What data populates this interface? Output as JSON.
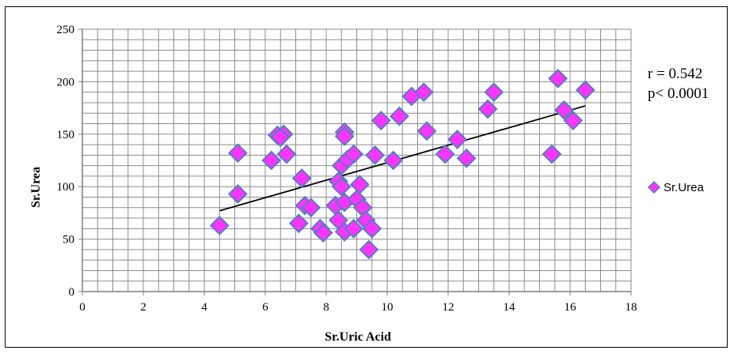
{
  "chart_data": {
    "type": "scatter",
    "xlabel": "Sr.Uric Acid",
    "ylabel": "Sr.Urea",
    "xlim": [
      0,
      18
    ],
    "ylim": [
      0,
      250
    ],
    "x_ticks": [
      "0",
      "2",
      "4",
      "6",
      "8",
      "10",
      "12",
      "14",
      "16",
      "18"
    ],
    "y_ticks": [
      "0",
      "50",
      "100",
      "150",
      "200",
      "250"
    ],
    "x_tick_values": [
      0,
      2,
      4,
      6,
      8,
      10,
      12,
      14,
      16,
      18
    ],
    "y_tick_values": [
      0,
      50,
      100,
      150,
      200,
      250
    ],
    "x_minor_step": 0.5,
    "y_minor_step": 10,
    "grid": true,
    "legend_position": "right",
    "annotations": [
      "r = 0.542",
      "p< 0.0001"
    ],
    "series": [
      {
        "name": "Sr.Urea",
        "marker": "diamond",
        "color": "#FF33FF",
        "edge_color": "#4F81BD",
        "points": [
          [
            4.5,
            63
          ],
          [
            5.1,
            132
          ],
          [
            5.1,
            93
          ],
          [
            6.2,
            125
          ],
          [
            6.4,
            149
          ],
          [
            6.6,
            150
          ],
          [
            6.5,
            147
          ],
          [
            6.7,
            131
          ],
          [
            7.2,
            108
          ],
          [
            7.1,
            65
          ],
          [
            7.3,
            82
          ],
          [
            7.5,
            80
          ],
          [
            7.8,
            60
          ],
          [
            7.9,
            56
          ],
          [
            8.3,
            82
          ],
          [
            8.4,
            105
          ],
          [
            8.4,
            68
          ],
          [
            8.5,
            120
          ],
          [
            8.5,
            100
          ],
          [
            8.6,
            152
          ],
          [
            8.6,
            148
          ],
          [
            8.6,
            85
          ],
          [
            8.6,
            57
          ],
          [
            8.7,
            126
          ],
          [
            8.9,
            131
          ],
          [
            8.9,
            60
          ],
          [
            9.0,
            88
          ],
          [
            9.1,
            102
          ],
          [
            9.2,
            80
          ],
          [
            9.3,
            68
          ],
          [
            9.4,
            40
          ],
          [
            9.5,
            60
          ],
          [
            9.6,
            130
          ],
          [
            9.8,
            163
          ],
          [
            10.2,
            125
          ],
          [
            10.4,
            167
          ],
          [
            10.8,
            186
          ],
          [
            11.2,
            190
          ],
          [
            11.3,
            153
          ],
          [
            11.9,
            131
          ],
          [
            12.3,
            145
          ],
          [
            12.6,
            127
          ],
          [
            13.3,
            174
          ],
          [
            13.5,
            190
          ],
          [
            15.4,
            131
          ],
          [
            15.6,
            203
          ],
          [
            15.8,
            173
          ],
          [
            16.1,
            163
          ],
          [
            16.5,
            192
          ]
        ]
      }
    ],
    "trendline": {
      "type": "linear",
      "x": [
        4.5,
        16.5
      ],
      "y": [
        77,
        177
      ]
    }
  },
  "colors": {
    "marker_fill": "#FF33FF",
    "marker_edge": "#4F81BD",
    "grid": "#8C8C8C",
    "trendline": "#000000"
  }
}
